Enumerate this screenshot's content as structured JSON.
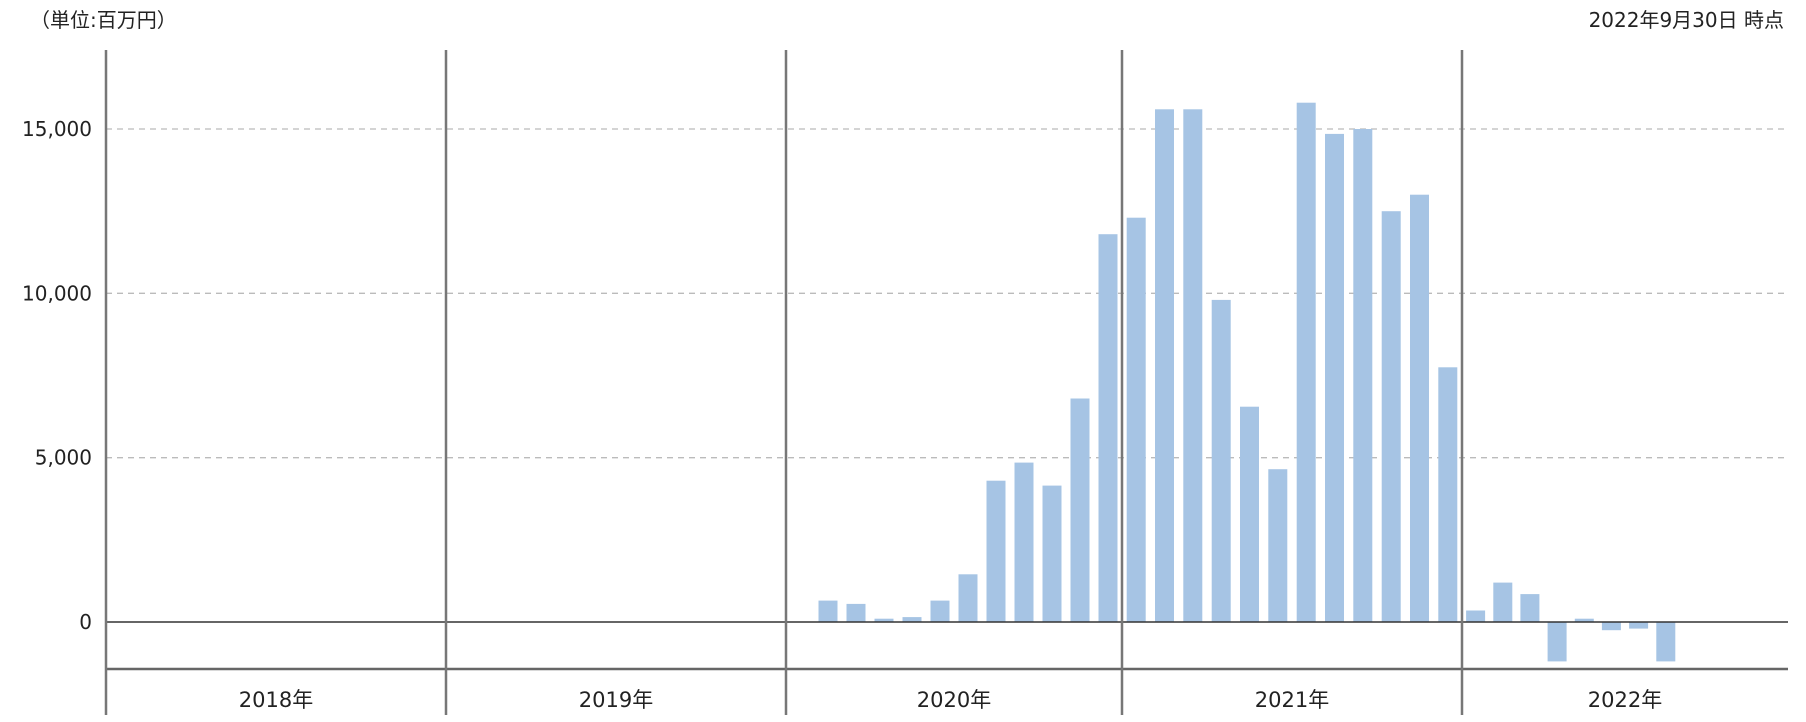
{
  "header": {
    "unit_label": "（単位:百万円）",
    "as_of_label": "2022年9月30日 時点"
  },
  "chart_data": {
    "type": "bar",
    "title": "",
    "xlabel": "",
    "ylabel": "",
    "ylim": [
      -1400,
      17200
    ],
    "grid": true,
    "y_ticks": [
      {
        "value": 0,
        "label": "0"
      },
      {
        "value": 5000,
        "label": "5,000"
      },
      {
        "value": 10000,
        "label": "10,000"
      },
      {
        "value": 15000,
        "label": "15,000"
      }
    ],
    "years": [
      "2018年",
      "2019年",
      "2020年",
      "2021年",
      "2022年"
    ],
    "bar_color": "#a6c4e4",
    "categories": [
      "2020-01",
      "2020-02",
      "2020-03",
      "2020-04",
      "2020-05",
      "2020-06",
      "2020-07",
      "2020-08",
      "2020-09",
      "2020-10",
      "2020-11",
      "2020-12",
      "2021-01",
      "2021-02",
      "2021-03",
      "2021-04",
      "2021-05",
      "2021-06",
      "2021-07",
      "2021-08",
      "2021-09",
      "2021-10",
      "2021-11",
      "2021-12",
      "2022-01",
      "2022-02",
      "2022-03",
      "2022-04",
      "2022-05",
      "2022-06",
      "2022-07",
      "2022-08",
      "2022-09"
    ],
    "values": [
      0,
      650,
      550,
      100,
      150,
      650,
      1450,
      4300,
      4850,
      4150,
      6800,
      11800,
      12300,
      15600,
      15600,
      9800,
      6550,
      4650,
      15800,
      14850,
      15000,
      12500,
      13000,
      7750,
      350,
      1200,
      850,
      -1200,
      100,
      -250,
      -200,
      -1200,
      0
    ]
  }
}
